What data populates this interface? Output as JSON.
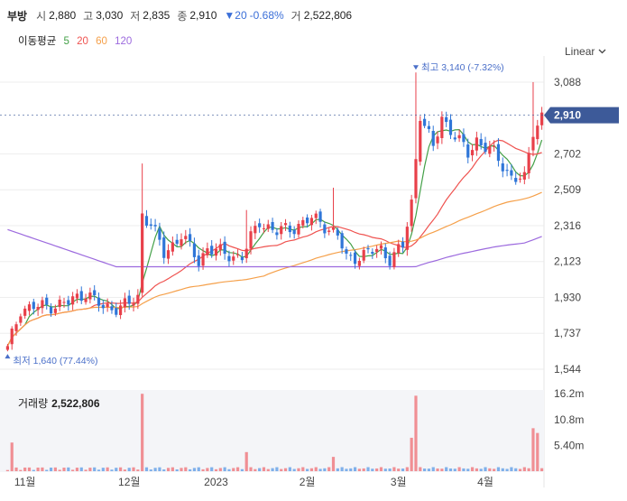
{
  "header": {
    "name": "부방",
    "open_label": "시",
    "open": "2,880",
    "high_label": "고",
    "high": "3,030",
    "low_label": "저",
    "low": "2,835",
    "close_label": "종",
    "close": "2,910",
    "change": "▼20",
    "change_pct": "-0.68%",
    "volume_label": "거",
    "volume": "2,522,806"
  },
  "moving_average": {
    "label": "이동평균",
    "periods": [
      {
        "label": "5",
        "color": "#43a047"
      },
      {
        "label": "20",
        "color": "#ef5350"
      },
      {
        "label": "60",
        "color": "#f5a04a"
      },
      {
        "label": "120",
        "color": "#9c6ade"
      }
    ]
  },
  "scale_button": {
    "label": "Linear",
    "icon": "chevron-down-icon"
  },
  "colors": {
    "up": "#e8404a",
    "down": "#2f76d8",
    "current_badge": "#3d5a99"
  },
  "chart_data": {
    "type": "candlestick",
    "price_axis": {
      "ticks": [
        "3,088",
        "2,702",
        "2,509",
        "2,316",
        "2,123",
        "1,930",
        "1,737",
        "1,544"
      ],
      "ylim": [
        1500,
        3180
      ],
      "grid": true
    },
    "x_axis": {
      "ticks": [
        "11월",
        "12월",
        "2023",
        "2월",
        "3월",
        "4월"
      ]
    },
    "current_price": "2,910",
    "max_annotation": {
      "label": "최고",
      "price": "3,140",
      "pct": "(-7.32%)"
    },
    "min_annotation": {
      "label": "최저",
      "price": "1,640",
      "pct": "(77.44%)"
    },
    "volume_axis": {
      "ticks": [
        "16.2m",
        "10.8m",
        "5.40m"
      ]
    },
    "volume_title": "거래량",
    "volume_value": "2,522,806",
    "anchors": [
      [
        0,
        1650
      ],
      [
        3,
        1870
      ],
      [
        8,
        1880
      ],
      [
        14,
        1900
      ],
      [
        18,
        1960
      ],
      [
        22,
        1870
      ],
      [
        28,
        1890
      ],
      [
        30,
        1930
      ],
      [
        31,
        2380
      ],
      [
        33,
        2330
      ],
      [
        36,
        2160
      ],
      [
        40,
        2270
      ],
      [
        44,
        2120
      ],
      [
        46,
        2200
      ],
      [
        50,
        2160
      ],
      [
        54,
        2150
      ],
      [
        58,
        2340
      ],
      [
        62,
        2280
      ],
      [
        66,
        2310
      ],
      [
        70,
        2350
      ],
      [
        72,
        2340
      ],
      [
        76,
        2260
      ],
      [
        78,
        2140
      ],
      [
        82,
        2160
      ],
      [
        86,
        2190
      ],
      [
        88,
        2140
      ],
      [
        91,
        2200
      ],
      [
        93,
        2440
      ],
      [
        95,
        2920
      ],
      [
        98,
        2730
      ],
      [
        100,
        2900
      ],
      [
        103,
        2800
      ],
      [
        106,
        2700
      ],
      [
        108,
        2780
      ],
      [
        112,
        2700
      ],
      [
        116,
        2580
      ],
      [
        119,
        2560
      ],
      [
        121,
        2830
      ],
      [
        123,
        2910
      ]
    ],
    "spikes": [
      [
        31,
        2650
      ],
      [
        55,
        2400
      ],
      [
        75,
        2520
      ],
      [
        94,
        3140
      ],
      [
        121,
        3088
      ]
    ],
    "volume_spikes": [
      [
        1,
        6
      ],
      [
        31,
        7
      ],
      [
        55,
        4
      ],
      [
        75,
        3
      ],
      [
        93,
        7
      ],
      [
        94,
        12
      ],
      [
        121,
        9
      ],
      [
        122,
        8
      ]
    ]
  }
}
